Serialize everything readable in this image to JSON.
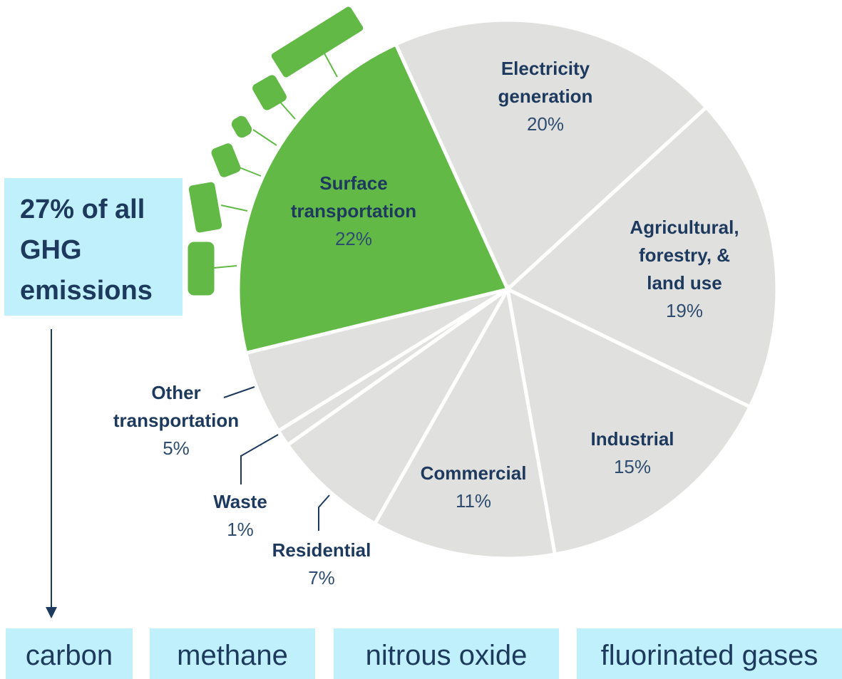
{
  "chart_data": {
    "type": "pie",
    "categories": [
      "Electricity generation",
      "Agricultural, forestry, & land use",
      "Industrial",
      "Commercial",
      "Residential",
      "Waste",
      "Other transportation",
      "Surface transportation"
    ],
    "values": [
      20,
      19,
      15,
      11,
      7,
      1,
      5,
      22
    ],
    "value_labels": [
      "20%",
      "19%",
      "15%",
      "11%",
      "7%",
      "1%",
      "5%",
      "22%"
    ],
    "colors": [
      "#e0e0de",
      "#e0e0de",
      "#e0e0de",
      "#e0e0de",
      "#e0e0de",
      "#e0e0de",
      "#e0e0de",
      "#62b946"
    ]
  },
  "callout": "27% of all GHG emissions",
  "gases": [
    "carbon",
    "methane",
    "nitrous oxide",
    "fluorinated gases"
  ]
}
